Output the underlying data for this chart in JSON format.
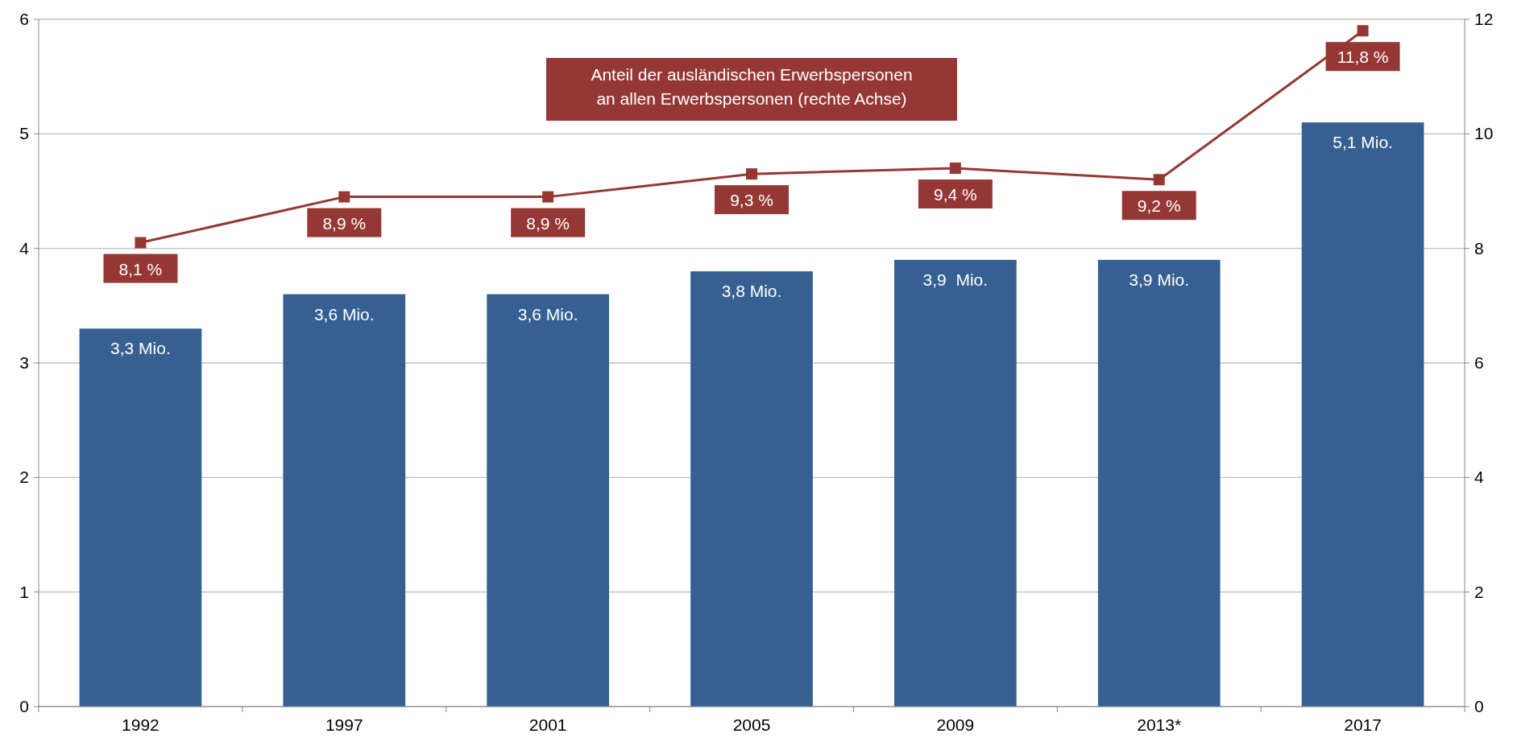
{
  "chart_data": {
    "type": "bar",
    "categories": [
      "1992",
      "1997",
      "2001",
      "2005",
      "2009",
      "2013*",
      "2017"
    ],
    "ylim": [
      0,
      6
    ],
    "yticks": [
      0,
      1,
      2,
      3,
      4,
      5,
      6
    ],
    "y2lim": [
      0,
      12
    ],
    "y2ticks": [
      0,
      2,
      4,
      6,
      8,
      10,
      12
    ],
    "grid": "y",
    "series": [
      {
        "color": "#376092",
        "values": [
          3.3,
          3.6,
          3.6,
          3.8,
          3.9,
          3.9,
          5.1
        ],
        "value_labels": [
          "3,3 Mio.",
          "3,6 Mio.",
          "3,6 Mio.",
          "3,8 Mio.",
          "3,9  Mio.",
          "3,9 Mio.",
          "5,1 Mio."
        ]
      },
      {
        "type": "line",
        "axis": "y2",
        "name": "Anteil der ausländischen Erwerbspersonen\nan allen Erwerbspersonen (rechte Achse)",
        "color": "#953735",
        "marker": "square",
        "values": [
          8.1,
          8.9,
          8.9,
          9.3,
          9.4,
          9.2,
          11.8
        ],
        "value_labels": [
          "8,1 %",
          "8,9 %",
          "8,9 %",
          "9,3 %",
          "9,4 %",
          "9,2 %",
          "11,8 %"
        ]
      }
    ]
  }
}
